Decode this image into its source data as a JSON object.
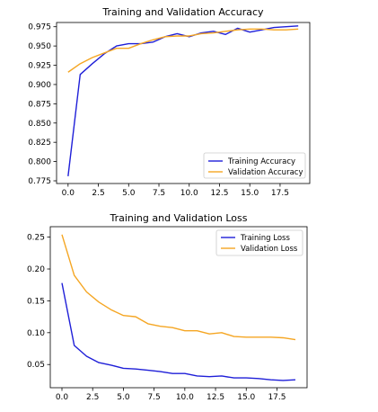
{
  "chart_data": [
    {
      "type": "line",
      "title": "Training and Validation Accuracy",
      "xlabel": "",
      "ylabel": "",
      "xlim": [
        -0.95,
        19.95
      ],
      "ylim": [
        0.7715,
        0.9805
      ],
      "xticks": [
        0.0,
        2.5,
        5.0,
        7.5,
        10.0,
        12.5,
        15.0,
        17.5
      ],
      "xtick_labels": [
        "0.0",
        "2.5",
        "5.0",
        "7.5",
        "10.0",
        "12.5",
        "15.0",
        "17.5"
      ],
      "yticks": [
        0.775,
        0.8,
        0.825,
        0.85,
        0.875,
        0.9,
        0.925,
        0.95,
        0.975
      ],
      "ytick_labels": [
        "0.775",
        "0.800",
        "0.825",
        "0.850",
        "0.875",
        "0.900",
        "0.925",
        "0.950",
        "0.975"
      ],
      "grid": false,
      "legend": "lower-right",
      "x": [
        0,
        1,
        2,
        3,
        4,
        5,
        6,
        7,
        8,
        9,
        10,
        11,
        12,
        13,
        14,
        15,
        16,
        17,
        18,
        19
      ],
      "series": [
        {
          "name": "Training Accuracy",
          "color": "#1f1fd8",
          "values": [
            0.781,
            0.913,
            0.927,
            0.94,
            0.95,
            0.953,
            0.953,
            0.955,
            0.962,
            0.966,
            0.962,
            0.967,
            0.969,
            0.965,
            0.973,
            0.968,
            0.971,
            0.974,
            0.975,
            0.976
          ]
        },
        {
          "name": "Validation Accuracy",
          "color": "#f5a623",
          "values": [
            0.916,
            0.927,
            0.935,
            0.941,
            0.947,
            0.947,
            0.953,
            0.958,
            0.962,
            0.963,
            0.963,
            0.966,
            0.967,
            0.969,
            0.971,
            0.972,
            0.972,
            0.971,
            0.971,
            0.972
          ]
        }
      ]
    },
    {
      "type": "line",
      "title": "Training and Validation Loss",
      "xlabel": "",
      "ylabel": "",
      "xlim": [
        -0.95,
        19.95
      ],
      "ylim": [
        0.0136,
        0.2664
      ],
      "xticks": [
        0.0,
        2.5,
        5.0,
        7.5,
        10.0,
        12.5,
        15.0,
        17.5
      ],
      "xtick_labels": [
        "0.0",
        "2.5",
        "5.0",
        "7.5",
        "10.0",
        "12.5",
        "15.0",
        "17.5"
      ],
      "yticks": [
        0.05,
        0.1,
        0.15,
        0.2,
        0.25
      ],
      "ytick_labels": [
        "0.05",
        "0.10",
        "0.15",
        "0.20",
        "0.25"
      ],
      "grid": false,
      "legend": "upper-right",
      "x": [
        0,
        1,
        2,
        3,
        4,
        5,
        6,
        7,
        8,
        9,
        10,
        11,
        12,
        13,
        14,
        15,
        16,
        17,
        18,
        19
      ],
      "series": [
        {
          "name": "Training Loss",
          "color": "#1f1fd8",
          "values": [
            0.178,
            0.08,
            0.063,
            0.053,
            0.049,
            0.044,
            0.043,
            0.041,
            0.039,
            0.036,
            0.036,
            0.032,
            0.031,
            0.032,
            0.029,
            0.029,
            0.028,
            0.026,
            0.025,
            0.026
          ]
        },
        {
          "name": "Validation Loss",
          "color": "#f5a623",
          "values": [
            0.254,
            0.19,
            0.164,
            0.148,
            0.136,
            0.127,
            0.125,
            0.114,
            0.11,
            0.108,
            0.103,
            0.103,
            0.098,
            0.1,
            0.094,
            0.093,
            0.093,
            0.093,
            0.092,
            0.089
          ]
        }
      ]
    }
  ]
}
